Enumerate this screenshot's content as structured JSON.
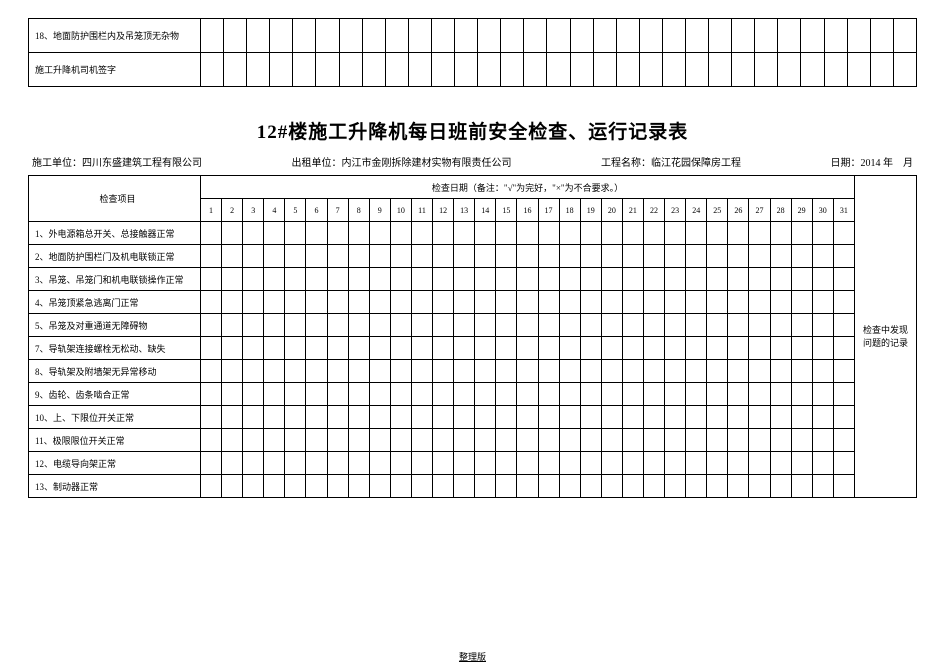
{
  "top_table": {
    "rows": [
      "18、地面防护围栏内及吊笼顶无杂物",
      "施工升降机司机签字"
    ],
    "day_cols": 31
  },
  "title": "12#楼施工升降机每日班前安全检查、运行记录表",
  "info": {
    "construct_label": "施工单位：",
    "construct_value": "四川东盛建筑工程有限公司",
    "lease_label": "出租单位：",
    "lease_value": "内江市金刚拆除建材实物有限责任公司",
    "project_label": "工程名称：",
    "project_value": "临江花园保障房工程",
    "date_label": "日期：",
    "date_value": "2014 年　月"
  },
  "main_table": {
    "check_item_header": "检查项目",
    "date_header": "检查日期（备注：\"√\"为完好，\"×\"为不合要求。）",
    "issue_header": "检查中发现\n问题的记录",
    "days": [
      "1",
      "2",
      "3",
      "4",
      "5",
      "6",
      "7",
      "8",
      "9",
      "10",
      "11",
      "12",
      "13",
      "14",
      "15",
      "16",
      "17",
      "18",
      "19",
      "20",
      "21",
      "22",
      "23",
      "24",
      "25",
      "26",
      "27",
      "28",
      "29",
      "30",
      "31"
    ],
    "rows": [
      "1、外电源箱总开关、总接触器正常",
      "2、地面防护围栏门及机电联锁正常",
      "3、吊笼、吊笼门和机电联锁操作正常",
      "4、吊笼顶紧急逃离门正常",
      "5、吊笼及对重通道无障碍物",
      "7、导轨架连接螺栓无松动、缺失",
      "8、导轨架及附墙架无异常移动",
      "9、齿轮、齿条啮合正常",
      "10、上、下限位开关正常",
      "11、极限限位开关正常",
      "12、电缆导向架正常",
      "13、制动器正常"
    ]
  },
  "footer": "整理版"
}
